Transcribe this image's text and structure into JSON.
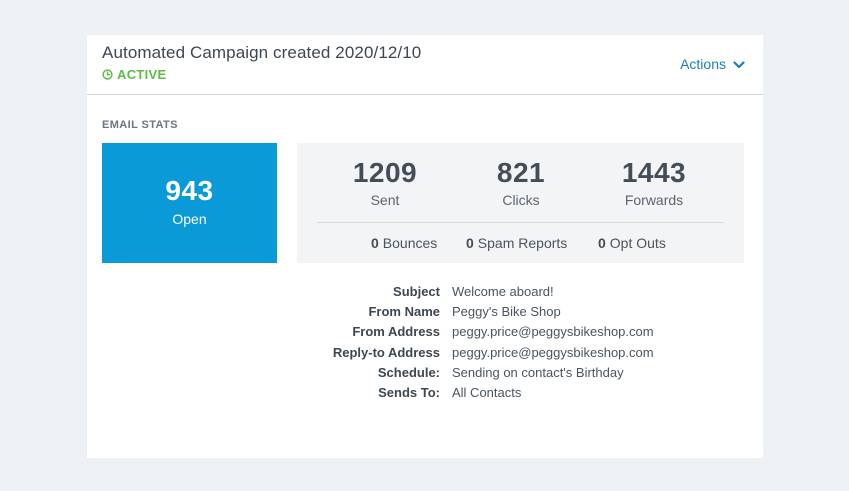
{
  "header": {
    "title": "Automated Campaign created 2020/12/10",
    "status": "ACTIVE",
    "status_icon": "clock-icon",
    "status_color": "#5dbb46",
    "actions_label": "Actions",
    "accent_color": "#1f7cb6"
  },
  "email_stats": {
    "section_label": "EMAIL STATS",
    "open": {
      "value": "943",
      "label": "Open",
      "color": "#0b9ad8"
    },
    "sent": {
      "value": "1209",
      "label": "Sent"
    },
    "clicks": {
      "value": "821",
      "label": "Clicks"
    },
    "forwards": {
      "value": "1443",
      "label": "Forwards"
    },
    "bounces": {
      "value": "0",
      "label": "Bounces"
    },
    "spam_reports": {
      "value": "0",
      "label": "Spam Reports"
    },
    "opt_outs": {
      "value": "0",
      "label": "Opt Outs"
    }
  },
  "details": [
    {
      "key": "Subject",
      "value": "Welcome aboard!"
    },
    {
      "key": "From Name",
      "value": "Peggy's Bike Shop"
    },
    {
      "key": "From Address",
      "value": "peggy.price@peggysbikeshop.com"
    },
    {
      "key": "Reply-to Address",
      "value": "peggy.price@peggysbikeshop.com"
    },
    {
      "key": "Schedule:",
      "value": "Sending on contact's Birthday"
    },
    {
      "key": "Sends To:",
      "value": "All Contacts"
    }
  ]
}
